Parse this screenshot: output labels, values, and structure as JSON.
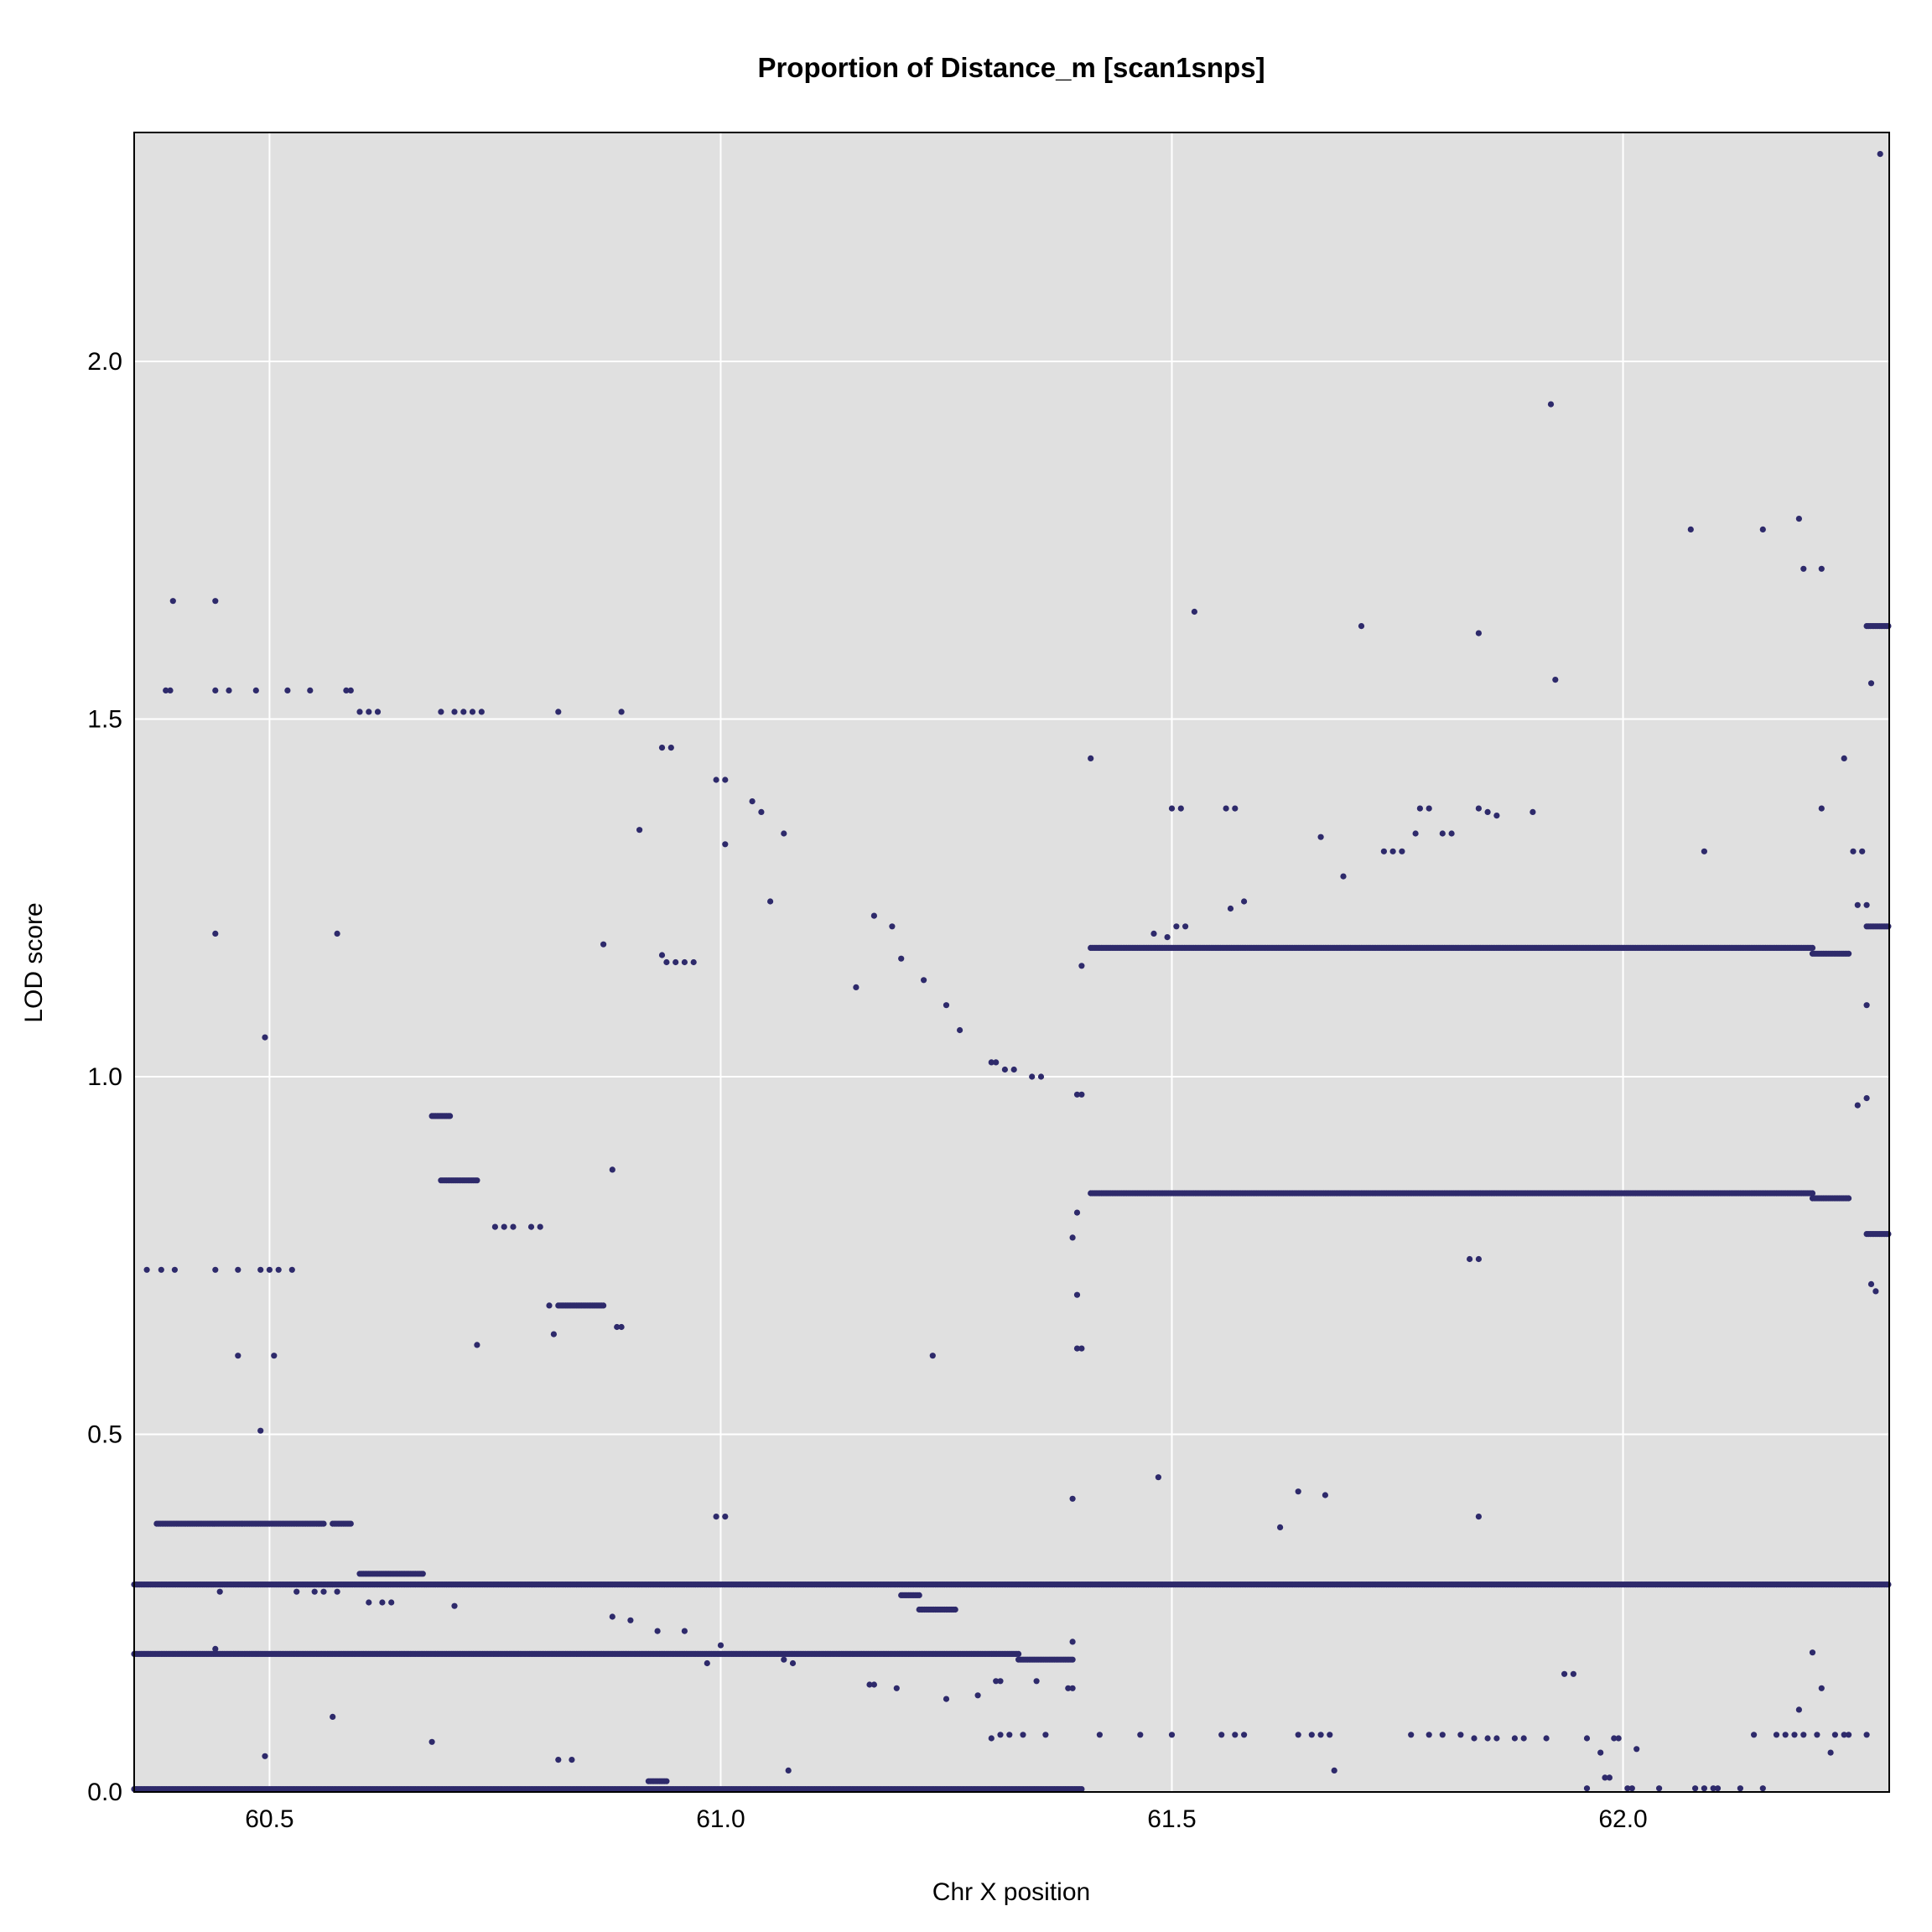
{
  "chart_data": {
    "type": "scatter",
    "title": "Proportion of Distance_m [scan1snps]",
    "xlabel": "Chr X position",
    "ylabel": "LOD score",
    "xlim": [
      60.35,
      62.295
    ],
    "ylim": [
      0,
      2.32
    ],
    "x_ticks": [
      "60.5",
      "61.0",
      "61.5",
      "62.0"
    ],
    "y_ticks": [
      "0.0",
      "0.5",
      "1.0",
      "1.5",
      "2.0"
    ],
    "grid": true,
    "point_color": "#2e2a6b",
    "panel_background": "#e0e0e0",
    "grid_color": "#ffffff",
    "bands": [
      {
        "x_start": 60.35,
        "x_end": 61.4,
        "y": 0.004,
        "step": 0.002
      },
      {
        "x_start": 60.35,
        "x_end": 62.295,
        "y": 0.29,
        "step": 0.002
      },
      {
        "x_start": 60.35,
        "x_end": 61.33,
        "y": 0.193,
        "step": 0.002
      },
      {
        "x_start": 61.41,
        "x_end": 62.21,
        "y": 1.18,
        "step": 0.002
      },
      {
        "x_start": 61.41,
        "x_end": 62.21,
        "y": 0.837,
        "step": 0.002
      },
      {
        "x_start": 60.375,
        "x_end": 60.47,
        "y": 0.375,
        "step": 0.002
      },
      {
        "x_start": 60.47,
        "x_end": 60.56,
        "y": 0.375,
        "step": 0.002
      },
      {
        "x_start": 60.57,
        "x_end": 60.59,
        "y": 0.375,
        "step": 0.002
      },
      {
        "x_start": 60.6,
        "x_end": 60.67,
        "y": 0.305,
        "step": 0.002
      },
      {
        "x_start": 60.68,
        "x_end": 60.7,
        "y": 0.945,
        "step": 0.002
      },
      {
        "x_start": 60.69,
        "x_end": 60.73,
        "y": 0.855,
        "step": 0.002
      },
      {
        "x_start": 60.82,
        "x_end": 60.87,
        "y": 0.68,
        "step": 0.002
      },
      {
        "x_start": 61.2,
        "x_end": 61.22,
        "y": 0.275,
        "step": 0.002
      },
      {
        "x_start": 61.22,
        "x_end": 61.26,
        "y": 0.255,
        "step": 0.002
      },
      {
        "x_start": 61.33,
        "x_end": 61.39,
        "y": 0.185,
        "step": 0.002
      },
      {
        "x_start": 62.21,
        "x_end": 62.25,
        "y": 1.172,
        "step": 0.002
      },
      {
        "x_start": 62.21,
        "x_end": 62.25,
        "y": 0.83,
        "step": 0.002
      },
      {
        "x_start": 62.27,
        "x_end": 62.295,
        "y": 1.63,
        "step": 0.002
      },
      {
        "x_start": 62.27,
        "x_end": 62.295,
        "y": 1.21,
        "step": 0.002
      },
      {
        "x_start": 62.27,
        "x_end": 62.295,
        "y": 0.78,
        "step": 0.002
      },
      {
        "x_start": 60.92,
        "x_end": 60.94,
        "y": 0.015,
        "step": 0.002
      }
    ],
    "points": [
      [
        60.364,
        0.73
      ],
      [
        60.38,
        0.73
      ],
      [
        60.395,
        0.73
      ],
      [
        60.385,
        1.54
      ],
      [
        60.39,
        1.54
      ],
      [
        60.393,
        1.665
      ],
      [
        60.44,
        1.665
      ],
      [
        60.44,
        1.54
      ],
      [
        60.455,
        1.54
      ],
      [
        60.485,
        1.54
      ],
      [
        60.52,
        1.54
      ],
      [
        60.545,
        1.54
      ],
      [
        60.585,
        1.54
      ],
      [
        60.59,
        1.54
      ],
      [
        60.6,
        1.51
      ],
      [
        60.61,
        1.51
      ],
      [
        60.62,
        1.51
      ],
      [
        60.69,
        1.51
      ],
      [
        60.705,
        1.51
      ],
      [
        60.715,
        1.51
      ],
      [
        60.725,
        1.51
      ],
      [
        60.735,
        1.51
      ],
      [
        60.82,
        1.51
      ],
      [
        60.89,
        1.51
      ],
      [
        60.935,
        1.46
      ],
      [
        60.945,
        1.46
      ],
      [
        60.995,
        1.415
      ],
      [
        61.005,
        1.415
      ],
      [
        61.035,
        1.385
      ],
      [
        61.045,
        1.37
      ],
      [
        61.07,
        1.34
      ],
      [
        61.005,
        1.325
      ],
      [
        60.91,
        1.345
      ],
      [
        61.055,
        1.245
      ],
      [
        61.15,
        1.125
      ],
      [
        61.17,
        1.225
      ],
      [
        61.19,
        1.21
      ],
      [
        61.2,
        1.165
      ],
      [
        61.225,
        1.135
      ],
      [
        61.25,
        1.1
      ],
      [
        61.265,
        1.065
      ],
      [
        61.3,
        1.02
      ],
      [
        61.305,
        1.02
      ],
      [
        61.315,
        1.01
      ],
      [
        61.325,
        1.01
      ],
      [
        61.345,
        1.0
      ],
      [
        61.355,
        1.0
      ],
      [
        61.395,
        0.975
      ],
      [
        61.4,
        0.975
      ],
      [
        61.4,
        1.155
      ],
      [
        61.41,
        1.445
      ],
      [
        60.935,
        1.17
      ],
      [
        60.94,
        1.16
      ],
      [
        60.95,
        1.16
      ],
      [
        60.96,
        1.16
      ],
      [
        60.97,
        1.16
      ],
      [
        60.87,
        1.185
      ],
      [
        60.44,
        1.2
      ],
      [
        60.575,
        1.2
      ],
      [
        60.495,
        1.055
      ],
      [
        60.44,
        0.73
      ],
      [
        60.465,
        0.73
      ],
      [
        60.49,
        0.73
      ],
      [
        60.5,
        0.73
      ],
      [
        60.51,
        0.73
      ],
      [
        60.525,
        0.73
      ],
      [
        60.465,
        0.61
      ],
      [
        60.505,
        0.61
      ],
      [
        60.49,
        0.505
      ],
      [
        60.73,
        0.625
      ],
      [
        60.75,
        0.79
      ],
      [
        60.76,
        0.79
      ],
      [
        60.77,
        0.79
      ],
      [
        60.79,
        0.79
      ],
      [
        60.8,
        0.79
      ],
      [
        60.81,
        0.68
      ],
      [
        60.815,
        0.64
      ],
      [
        60.88,
        0.87
      ],
      [
        60.885,
        0.65
      ],
      [
        60.89,
        0.65
      ],
      [
        61.235,
        0.61
      ],
      [
        61.39,
        0.775
      ],
      [
        61.395,
        0.81
      ],
      [
        61.395,
        0.695
      ],
      [
        61.395,
        0.62
      ],
      [
        61.4,
        0.62
      ],
      [
        61.39,
        0.41
      ],
      [
        61.48,
        1.2
      ],
      [
        61.495,
        1.195
      ],
      [
        61.505,
        1.21
      ],
      [
        61.515,
        1.21
      ],
      [
        61.525,
        1.65
      ],
      [
        61.5,
        1.375
      ],
      [
        61.51,
        1.375
      ],
      [
        61.56,
        1.375
      ],
      [
        61.57,
        1.375
      ],
      [
        61.565,
        1.235
      ],
      [
        61.58,
        1.245
      ],
      [
        61.665,
        1.335
      ],
      [
        61.69,
        1.28
      ],
      [
        61.71,
        1.63
      ],
      [
        61.735,
        1.315
      ],
      [
        61.745,
        1.315
      ],
      [
        61.755,
        1.315
      ],
      [
        61.77,
        1.34
      ],
      [
        61.775,
        1.375
      ],
      [
        61.785,
        1.375
      ],
      [
        61.8,
        1.34
      ],
      [
        61.81,
        1.34
      ],
      [
        61.84,
        1.62
      ],
      [
        61.84,
        1.375
      ],
      [
        61.85,
        1.37
      ],
      [
        61.86,
        1.365
      ],
      [
        61.9,
        1.37
      ],
      [
        61.92,
        1.94
      ],
      [
        61.925,
        1.555
      ],
      [
        62.075,
        1.765
      ],
      [
        62.09,
        1.315
      ],
      [
        62.155,
        1.765
      ],
      [
        62.195,
        1.78
      ],
      [
        62.2,
        1.71
      ],
      [
        62.22,
        1.71
      ],
      [
        62.22,
        1.375
      ],
      [
        62.245,
        1.445
      ],
      [
        62.255,
        1.315
      ],
      [
        62.265,
        1.315
      ],
      [
        62.26,
        1.24
      ],
      [
        62.27,
        1.24
      ],
      [
        62.27,
        1.1
      ],
      [
        62.275,
        1.55
      ],
      [
        62.285,
        2.29
      ],
      [
        62.26,
        0.96
      ],
      [
        62.27,
        0.97
      ],
      [
        62.275,
        0.71
      ],
      [
        62.28,
        0.7
      ],
      [
        61.83,
        0.745
      ],
      [
        61.84,
        0.745
      ],
      [
        61.84,
        0.385
      ],
      [
        61.62,
        0.37
      ],
      [
        61.64,
        0.42
      ],
      [
        61.67,
        0.415
      ],
      [
        61.485,
        0.44
      ],
      [
        60.445,
        0.28
      ],
      [
        60.53,
        0.28
      ],
      [
        60.55,
        0.28
      ],
      [
        60.56,
        0.28
      ],
      [
        60.575,
        0.28
      ],
      [
        60.61,
        0.265
      ],
      [
        60.625,
        0.265
      ],
      [
        60.635,
        0.265
      ],
      [
        60.705,
        0.26
      ],
      [
        60.88,
        0.245
      ],
      [
        60.9,
        0.24
      ],
      [
        60.93,
        0.225
      ],
      [
        60.96,
        0.225
      ],
      [
        61.0,
        0.205
      ],
      [
        60.985,
        0.18
      ],
      [
        61.07,
        0.185
      ],
      [
        61.08,
        0.18
      ],
      [
        61.165,
        0.15
      ],
      [
        61.17,
        0.15
      ],
      [
        61.195,
        0.145
      ],
      [
        61.25,
        0.13
      ],
      [
        61.285,
        0.135
      ],
      [
        61.3,
        0.075
      ],
      [
        61.31,
        0.08
      ],
      [
        61.305,
        0.155
      ],
      [
        61.31,
        0.155
      ],
      [
        61.32,
        0.08
      ],
      [
        61.335,
        0.08
      ],
      [
        61.35,
        0.155
      ],
      [
        61.36,
        0.08
      ],
      [
        61.385,
        0.145
      ],
      [
        61.39,
        0.145
      ],
      [
        61.39,
        0.21
      ],
      [
        60.44,
        0.2
      ],
      [
        60.57,
        0.105
      ],
      [
        60.68,
        0.07
      ],
      [
        60.495,
        0.05
      ],
      [
        60.82,
        0.045
      ],
      [
        60.835,
        0.045
      ],
      [
        61.075,
        0.03
      ],
      [
        60.995,
        0.385
      ],
      [
        61.005,
        0.385
      ],
      [
        61.42,
        0.08
      ],
      [
        61.465,
        0.08
      ],
      [
        61.5,
        0.08
      ],
      [
        61.555,
        0.08
      ],
      [
        61.57,
        0.08
      ],
      [
        61.58,
        0.08
      ],
      [
        61.64,
        0.08
      ],
      [
        61.655,
        0.08
      ],
      [
        61.665,
        0.08
      ],
      [
        61.675,
        0.08
      ],
      [
        61.68,
        0.03
      ],
      [
        61.765,
        0.08
      ],
      [
        61.785,
        0.08
      ],
      [
        61.8,
        0.08
      ],
      [
        61.82,
        0.08
      ],
      [
        61.835,
        0.075
      ],
      [
        61.85,
        0.075
      ],
      [
        61.86,
        0.075
      ],
      [
        61.88,
        0.075
      ],
      [
        61.89,
        0.075
      ],
      [
        61.915,
        0.075
      ],
      [
        61.935,
        0.165
      ],
      [
        61.945,
        0.165
      ],
      [
        61.96,
        0.075
      ],
      [
        61.975,
        0.055
      ],
      [
        61.98,
        0.02
      ],
      [
        61.985,
        0.02
      ],
      [
        61.99,
        0.075
      ],
      [
        61.995,
        0.075
      ],
      [
        62.005,
        0.005
      ],
      [
        62.01,
        0.005
      ],
      [
        62.015,
        0.06
      ],
      [
        62.04,
        0.005
      ],
      [
        61.96,
        0.005
      ],
      [
        62.08,
        0.005
      ],
      [
        62.09,
        0.005
      ],
      [
        62.1,
        0.005
      ],
      [
        62.105,
        0.005
      ],
      [
        62.13,
        0.005
      ],
      [
        62.155,
        0.005
      ],
      [
        62.145,
        0.08
      ],
      [
        62.17,
        0.08
      ],
      [
        62.18,
        0.08
      ],
      [
        62.19,
        0.08
      ],
      [
        62.195,
        0.115
      ],
      [
        62.2,
        0.08
      ],
      [
        62.21,
        0.195
      ],
      [
        62.215,
        0.08
      ],
      [
        62.22,
        0.145
      ],
      [
        62.23,
        0.055
      ],
      [
        62.235,
        0.08
      ],
      [
        62.245,
        0.08
      ],
      [
        62.25,
        0.08
      ],
      [
        62.27,
        0.08
      ]
    ]
  }
}
